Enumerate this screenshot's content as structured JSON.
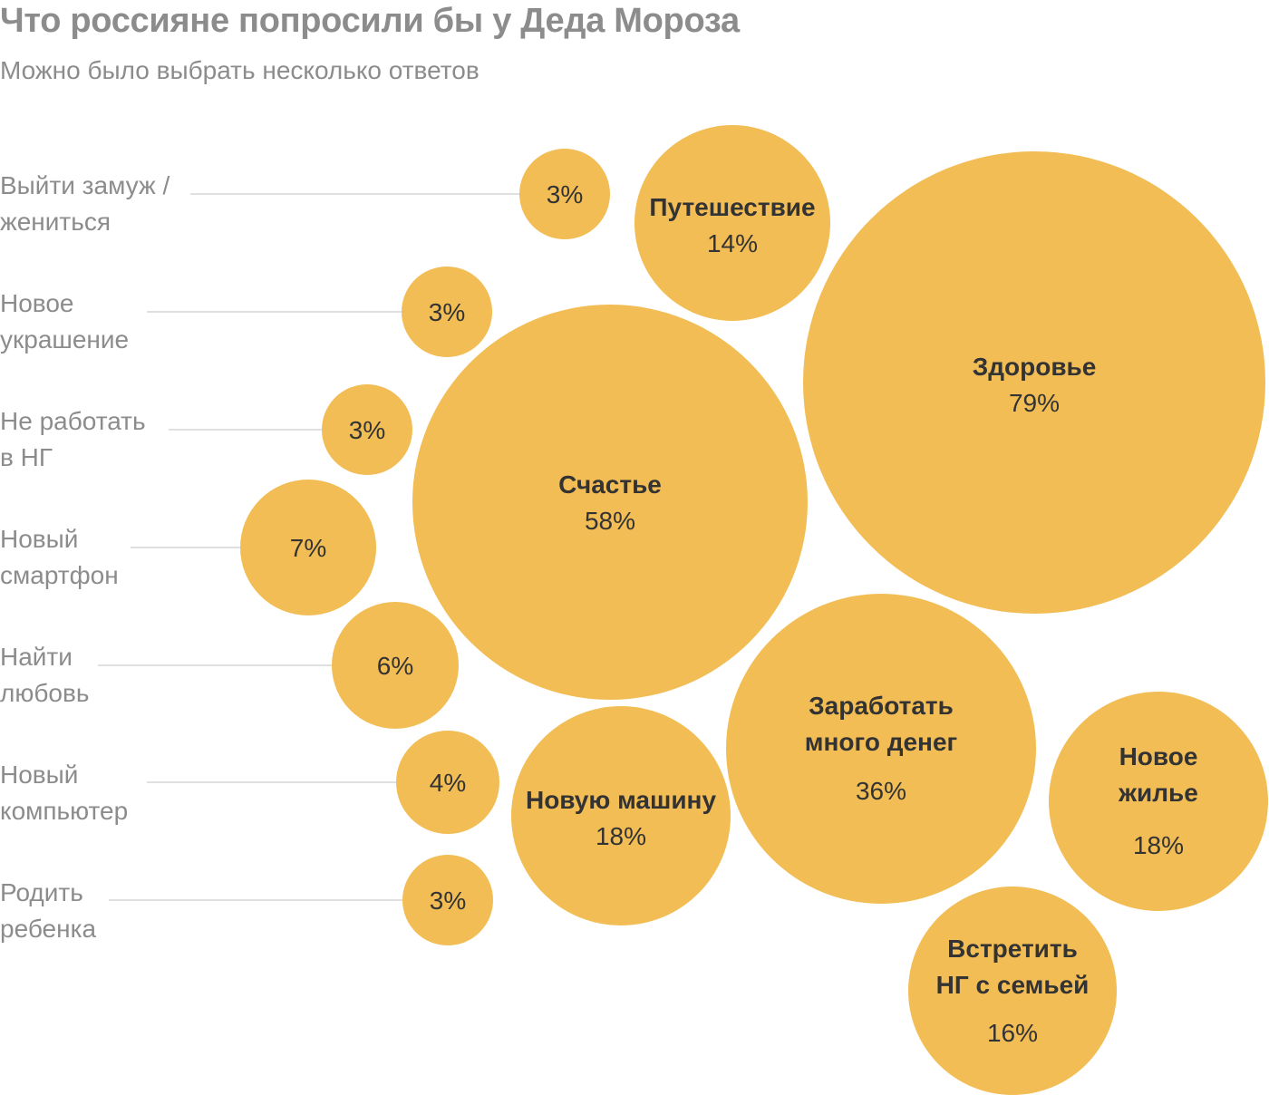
{
  "header": {
    "title": "Что россияне попросили бы у Деда Мороза",
    "subtitle": "Можно было выбрать несколько ответов"
  },
  "colors": {
    "bubble": "#F2BD55",
    "leader_line": "#d6d6d6",
    "label_text": "#8c8c8c",
    "value_text": "#333333"
  },
  "chart_data": {
    "type": "bubble",
    "title": "Что россияне попросили бы у Деда Мороза",
    "subtitle": "Можно было выбрать несколько ответов",
    "unit": "%",
    "series": [
      {
        "name": "Выйти замуж / жениться",
        "lines": [
          "Выйти замуж /",
          "жениться"
        ],
        "value": 3,
        "value_label": "3%",
        "label_position": "left"
      },
      {
        "name": "Новое украшение",
        "lines": [
          "Новое",
          "украшение"
        ],
        "value": 3,
        "value_label": "3%",
        "label_position": "left"
      },
      {
        "name": "Не работать в НГ",
        "lines": [
          "Не работать",
          "в НГ"
        ],
        "value": 3,
        "value_label": "3%",
        "label_position": "left"
      },
      {
        "name": "Новый смартфон",
        "lines": [
          "Новый",
          "смартфон"
        ],
        "value": 7,
        "value_label": "7%",
        "label_position": "left"
      },
      {
        "name": "Найти любовь",
        "lines": [
          "Найти",
          "любовь"
        ],
        "value": 6,
        "value_label": "6%",
        "label_position": "left"
      },
      {
        "name": "Новый компьютер",
        "lines": [
          "Новый",
          "компьютер"
        ],
        "value": 4,
        "value_label": "4%",
        "label_position": "left"
      },
      {
        "name": "Родить ребенка",
        "lines": [
          "Родить",
          "ребенка"
        ],
        "value": 3,
        "value_label": "3%",
        "label_position": "left"
      },
      {
        "name": "Путешествие",
        "lines": [
          "Путешествие"
        ],
        "value": 14,
        "value_label": "14%",
        "label_position": "inside"
      },
      {
        "name": "Здоровье",
        "lines": [
          "Здоровье"
        ],
        "value": 79,
        "value_label": "79%",
        "label_position": "inside"
      },
      {
        "name": "Счастье",
        "lines": [
          "Счастье"
        ],
        "value": 58,
        "value_label": "58%",
        "label_position": "inside"
      },
      {
        "name": "Заработать много денег",
        "lines": [
          "Заработать",
          "много денег"
        ],
        "value": 36,
        "value_label": "36%",
        "label_position": "inside"
      },
      {
        "name": "Новую машину",
        "lines": [
          "Новую машину"
        ],
        "value": 18,
        "value_label": "18%",
        "label_position": "inside"
      },
      {
        "name": "Новое жилье",
        "lines": [
          "Новое",
          "жилье"
        ],
        "value": 18,
        "value_label": "18%",
        "label_position": "inside"
      },
      {
        "name": "Встретить НГ с семьей",
        "lines": [
          "Встретить",
          "НГ с семьей"
        ],
        "value": 16,
        "value_label": "16%",
        "label_position": "inside"
      }
    ]
  }
}
